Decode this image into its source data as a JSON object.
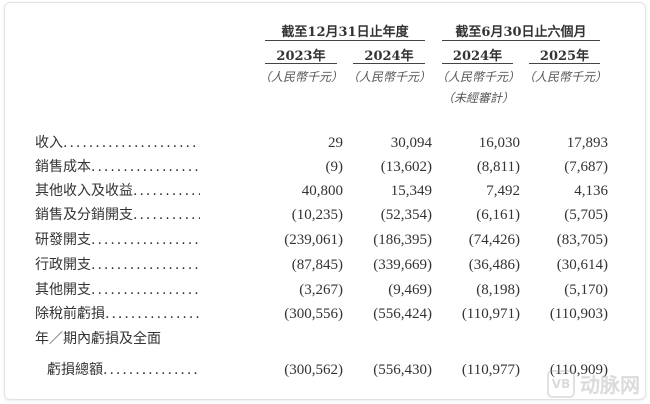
{
  "header": {
    "groups": [
      "截至12月31日止年度",
      "截至6月30日止六個月"
    ],
    "years": [
      "2023年",
      "2024年",
      "2024年",
      "2025年"
    ],
    "units": [
      "（人民幣千元）",
      "（人民幣千元）",
      "（人民幣千元）",
      "（人民幣千元）"
    ],
    "unaudited": "（未經審計）"
  },
  "rows": [
    {
      "label": "收入",
      "values": [
        "29",
        "30,094",
        "16,030",
        "17,893"
      ]
    },
    {
      "label": "銷售成本",
      "values": [
        "(9)",
        "(13,602)",
        "(8,811)",
        "(7,687)"
      ]
    },
    {
      "label": "其他收入及收益",
      "values": [
        "40,800",
        "15,349",
        "7,492",
        "4,136"
      ]
    },
    {
      "label": "銷售及分銷開支",
      "values": [
        "(10,235)",
        "(52,354)",
        "(6,161)",
        "(5,705)"
      ]
    },
    {
      "label": "研發開支",
      "values": [
        "(239,061)",
        "(186,395)",
        "(74,426)",
        "(83,705)"
      ]
    },
    {
      "label": "行政開支",
      "values": [
        "(87,845)",
        "(339,669)",
        "(36,486)",
        "(30,614)"
      ]
    },
    {
      "label": "其他開支",
      "values": [
        "(3,267)",
        "(9,469)",
        "(8,198)",
        "(5,170)"
      ]
    },
    {
      "label": "除稅前虧損",
      "values": [
        "(300,556)",
        "(556,424)",
        "(110,971)",
        "(110,903)"
      ]
    }
  ],
  "total": {
    "label_line1": "年／期內虧損及全面",
    "label_line2": "虧損總額",
    "values": [
      "(300,562)",
      "(556,430)",
      "(110,977)",
      "(110,909)"
    ]
  },
  "dots": "................................",
  "watermark": {
    "logo": "VB",
    "text": "动脉网"
  }
}
